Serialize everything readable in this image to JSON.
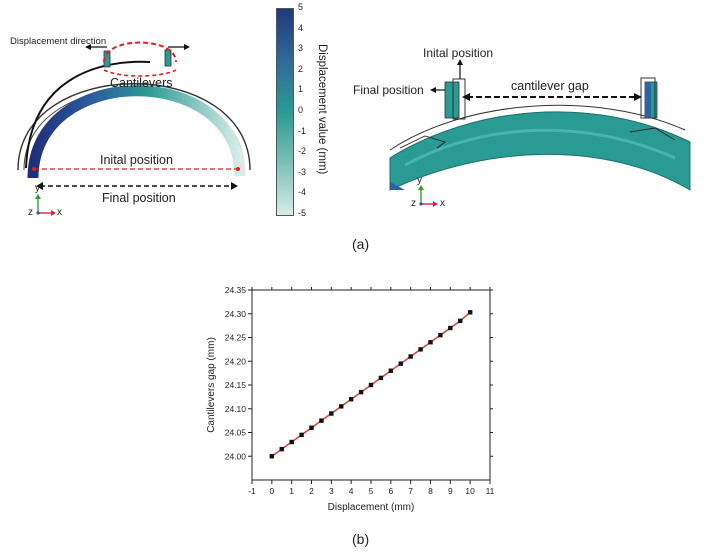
{
  "panel_a": {
    "left": {
      "displacement_direction": "Displacement direction",
      "cantilevers": "Cantilevers",
      "initial_position": "Inital position",
      "final_position": "Final position",
      "axis_y": "y",
      "axis_z": "z",
      "axis_x": "x"
    },
    "colorbar": {
      "title": "Displacement value (mm)",
      "ticks": [
        "5",
        "4",
        "3",
        "2",
        "1",
        "0",
        "-1",
        "-2",
        "-3",
        "-4",
        "-5"
      ],
      "colors": [
        "#213a7a",
        "#2f6a9a",
        "#2a9a94",
        "#d8ece8"
      ]
    },
    "right": {
      "initial_position": "Inital position",
      "final_position": "Final position",
      "cantilever_gap": "cantilever gap",
      "axis_y": "y",
      "axis_z": "z",
      "axis_x": "x"
    },
    "caption": "(a)"
  },
  "panel_b": {
    "caption": "(b)"
  },
  "chart_data": {
    "type": "line",
    "xlabel": "Displacement (mm)",
    "ylabel": "Cantilevers gap (mm)",
    "xlim": [
      -1,
      11
    ],
    "ylim": [
      23.95,
      24.35
    ],
    "x_ticks": [
      "-1",
      "0",
      "1",
      "2",
      "3",
      "4",
      "5",
      "6",
      "7",
      "8",
      "9",
      "10",
      "11"
    ],
    "y_ticks": [
      "24.00",
      "24.05",
      "24.10",
      "24.15",
      "24.20",
      "24.25",
      "24.30",
      "24.35"
    ],
    "x_tick_values": [
      -1,
      0,
      1,
      2,
      3,
      4,
      5,
      6,
      7,
      8,
      9,
      10,
      11
    ],
    "y_tick_values": [
      24.0,
      24.05,
      24.1,
      24.15,
      24.2,
      24.25,
      24.3,
      24.35
    ],
    "grid": false,
    "series": [
      {
        "marker_color": "#111111",
        "line_color": "#e0453a",
        "x": [
          0,
          0.5,
          1,
          1.5,
          2,
          2.5,
          3,
          3.5,
          4,
          4.5,
          5,
          5.5,
          6,
          6.5,
          7,
          7.5,
          8,
          8.5,
          9,
          9.5,
          10
        ],
        "y": [
          24.0,
          24.015,
          24.03,
          24.045,
          24.06,
          24.075,
          24.09,
          24.105,
          24.12,
          24.135,
          24.15,
          24.165,
          24.18,
          24.195,
          24.21,
          24.225,
          24.24,
          24.255,
          24.27,
          24.285,
          24.303
        ]
      }
    ]
  }
}
